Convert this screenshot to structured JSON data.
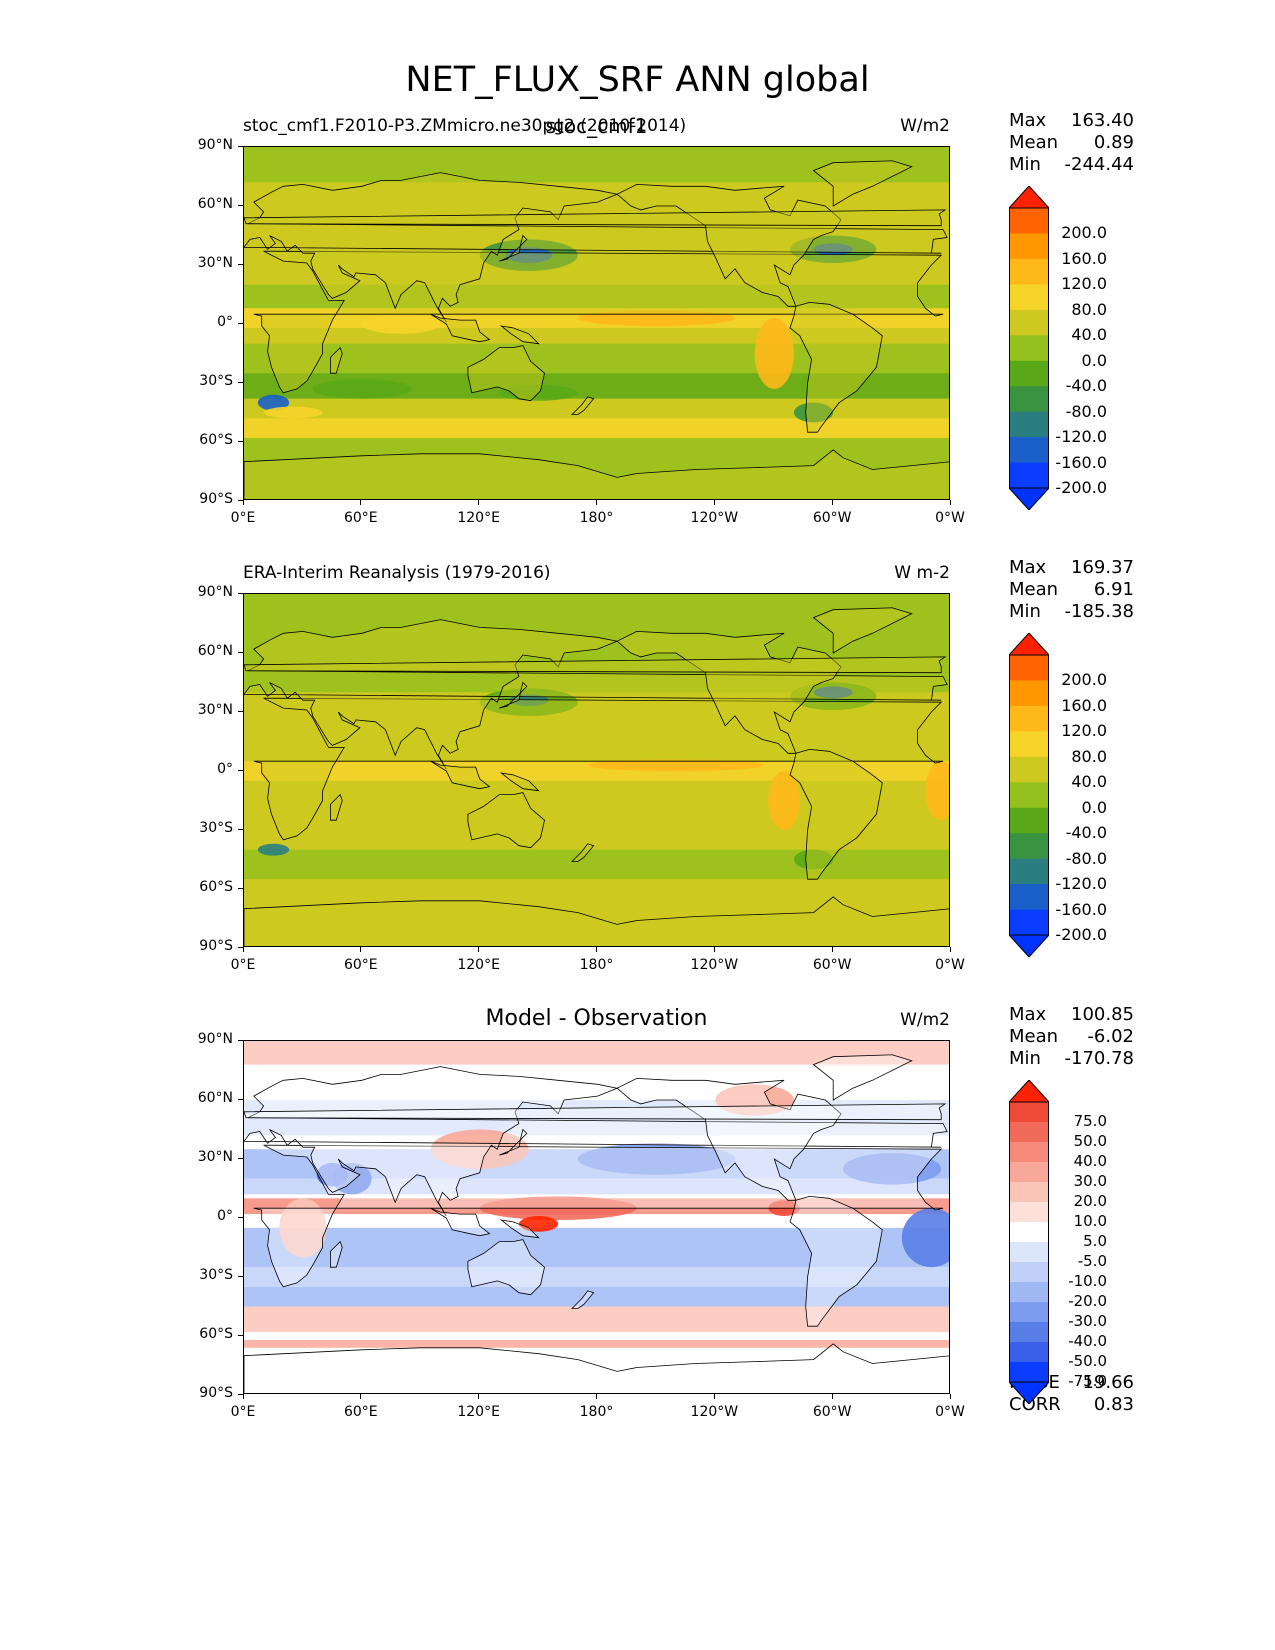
{
  "figure_title": "NET_FLUX_SRF ANN global",
  "panels": [
    {
      "left_title": "stoc_cmf1.F2010-P3.ZMmicro.ne30pg2 (2010-2014)",
      "center_title": "stoc_cmf1",
      "units": "W/m2",
      "stats": [
        {
          "label": "Max",
          "value": "163.40"
        },
        {
          "label": "Mean",
          "value": "0.89"
        },
        {
          "label": "Min",
          "value": "-244.44"
        }
      ],
      "colorbar": {
        "labels": [
          "200.0",
          "160.0",
          "120.0",
          "80.0",
          "40.0",
          "0.0",
          "-40.0",
          "-80.0",
          "-120.0",
          "-160.0",
          "-200.0"
        ],
        "colors": [
          "#ff2200",
          "#ff6400",
          "#ff9800",
          "#ffb81a",
          "#f7d42a",
          "#cdc920",
          "#94c11e",
          "#5aa817",
          "#3a9340",
          "#2b7e80",
          "#1a60c8",
          "#0a3dff",
          "#0033ff"
        ]
      },
      "field_style": "model"
    },
    {
      "left_title": "ERA-Interim Reanalysis (1979-2016)",
      "center_title": "",
      "units": "W m-2",
      "stats": [
        {
          "label": "Max",
          "value": "169.37"
        },
        {
          "label": "Mean",
          "value": "6.91"
        },
        {
          "label": "Min",
          "value": "-185.38"
        }
      ],
      "colorbar": {
        "labels": [
          "200.0",
          "160.0",
          "120.0",
          "80.0",
          "40.0",
          "0.0",
          "-40.0",
          "-80.0",
          "-120.0",
          "-160.0",
          "-200.0"
        ],
        "colors": [
          "#ff2200",
          "#ff6400",
          "#ff9800",
          "#ffb81a",
          "#f7d42a",
          "#cdc920",
          "#94c11e",
          "#5aa817",
          "#3a9340",
          "#2b7e80",
          "#1a60c8",
          "#0a3dff",
          "#0033ff"
        ]
      },
      "field_style": "obs"
    },
    {
      "left_title": "",
      "center_title": "Model - Observation",
      "units": "W/m2",
      "stats": [
        {
          "label": "Max",
          "value": "100.85"
        },
        {
          "label": "Mean",
          "value": "-6.02"
        },
        {
          "label": "Min",
          "value": "-170.78"
        }
      ],
      "extra_stats": [
        {
          "label": "RMSE",
          "value": "19.66"
        },
        {
          "label": "CORR",
          "value": "0.83"
        }
      ],
      "colorbar": {
        "labels": [
          "75.0",
          "50.0",
          "40.0",
          "30.0",
          "20.0",
          "10.0",
          "5.0",
          "-5.0",
          "-10.0",
          "-20.0",
          "-30.0",
          "-40.0",
          "-50.0",
          "-75.0"
        ],
        "colors": [
          "#ff2200",
          "#f04a3a",
          "#f26a5a",
          "#f58a7a",
          "#f8a898",
          "#fbc4b8",
          "#fde0d8",
          "#ffffff",
          "#dce6fa",
          "#c0d0f8",
          "#a0b8f4",
          "#7c9cf0",
          "#5a7ee8",
          "#3a60ea",
          "#0a3dff",
          "#0033ff"
        ]
      },
      "field_style": "diff"
    }
  ],
  "lat_ticks": [
    "90°N",
    "60°N",
    "30°N",
    "0°",
    "30°S",
    "60°S",
    "90°S"
  ],
  "lon_ticks": [
    "0°E",
    "60°E",
    "120°E",
    "180°",
    "120°W",
    "60°W",
    "0°W"
  ]
}
